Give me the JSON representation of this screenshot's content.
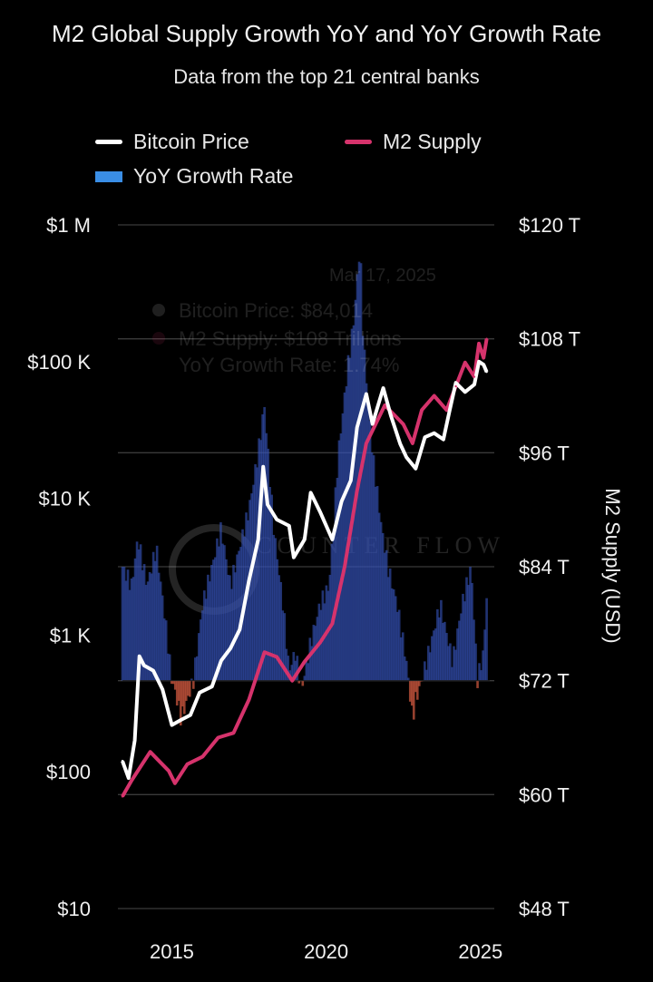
{
  "chart_data": {
    "type": "line",
    "title": "M2 Global Supply Growth YoY and YoY Growth Rate",
    "subtitle": "Data from the top 21 central banks",
    "legend": [
      {
        "name": "Bitcoin Price",
        "color": "#ffffff",
        "kind": "line"
      },
      {
        "name": "M2 Supply",
        "color": "#d6336c",
        "kind": "line"
      },
      {
        "name": "YoY Growth Rate",
        "color": "#3a8ee6",
        "kind": "bar"
      }
    ],
    "x_ticks": [
      "2015",
      "2020",
      "2025"
    ],
    "x_range": [
      2013.4,
      2025.3
    ],
    "y_left": {
      "scale": "log",
      "range": [
        10,
        1000000
      ],
      "ticks": [
        "$1 M",
        "$100 K",
        "$10 K",
        "$1 K",
        "$100",
        "$10"
      ]
    },
    "y_right": {
      "label": "M2 Supply (USD)",
      "range": [
        48,
        120
      ],
      "unit": "T",
      "ticks": [
        "$120 T",
        "$108 T",
        "$96 T",
        "$84 T",
        "$72 T",
        "$60 T",
        "$48 T"
      ]
    },
    "tooltip": {
      "date": "Mar 17, 2025",
      "lines": [
        "Bitcoin Price: $84,014",
        "M2 Supply: $108 Trillions",
        "YoY Growth Rate: 1.74%"
      ]
    },
    "watermark": "COUNTER FLOW",
    "series": [
      {
        "name": "Bitcoin Price",
        "axis": "left",
        "points": [
          [
            2013.4,
            120
          ],
          [
            2013.6,
            90
          ],
          [
            2013.8,
            170
          ],
          [
            2013.95,
            700
          ],
          [
            2014.1,
            600
          ],
          [
            2014.4,
            550
          ],
          [
            2014.7,
            400
          ],
          [
            2015.0,
            220
          ],
          [
            2015.3,
            240
          ],
          [
            2015.6,
            260
          ],
          [
            2015.9,
            380
          ],
          [
            2016.3,
            420
          ],
          [
            2016.6,
            650
          ],
          [
            2016.9,
            800
          ],
          [
            2017.2,
            1100
          ],
          [
            2017.5,
            2500
          ],
          [
            2017.8,
            5000
          ],
          [
            2017.96,
            17000
          ],
          [
            2018.1,
            9000
          ],
          [
            2018.4,
            7000
          ],
          [
            2018.8,
            6300
          ],
          [
            2018.95,
            3700
          ],
          [
            2019.3,
            5000
          ],
          [
            2019.5,
            11000
          ],
          [
            2019.8,
            8000
          ],
          [
            2020.2,
            5000
          ],
          [
            2020.5,
            9500
          ],
          [
            2020.8,
            13500
          ],
          [
            2021.0,
            33000
          ],
          [
            2021.3,
            58000
          ],
          [
            2021.5,
            35000
          ],
          [
            2021.85,
            64000
          ],
          [
            2022.1,
            40000
          ],
          [
            2022.4,
            25000
          ],
          [
            2022.6,
            20000
          ],
          [
            2022.9,
            16500
          ],
          [
            2023.2,
            28000
          ],
          [
            2023.5,
            30000
          ],
          [
            2023.8,
            27000
          ],
          [
            2024.0,
            44000
          ],
          [
            2024.2,
            70000
          ],
          [
            2024.5,
            60000
          ],
          [
            2024.8,
            68000
          ],
          [
            2024.95,
            100000
          ],
          [
            2025.1,
            95000
          ],
          [
            2025.2,
            84014
          ]
        ]
      },
      {
        "name": "M2 Supply",
        "axis": "right",
        "points": [
          [
            2013.4,
            59.8
          ],
          [
            2013.7,
            61.5
          ],
          [
            2014.0,
            63.0
          ],
          [
            2014.3,
            64.5
          ],
          [
            2014.6,
            63.5
          ],
          [
            2014.9,
            62.5
          ],
          [
            2015.1,
            61.2
          ],
          [
            2015.5,
            63.2
          ],
          [
            2016.0,
            64.0
          ],
          [
            2016.5,
            66.0
          ],
          [
            2017.0,
            66.5
          ],
          [
            2017.5,
            70.0
          ],
          [
            2018.0,
            75.0
          ],
          [
            2018.4,
            74.5
          ],
          [
            2018.9,
            72.0
          ],
          [
            2019.3,
            74.0
          ],
          [
            2019.8,
            76.0
          ],
          [
            2020.2,
            78.0
          ],
          [
            2020.6,
            84.0
          ],
          [
            2021.0,
            92.0
          ],
          [
            2021.3,
            97.0
          ],
          [
            2021.6,
            99.0
          ],
          [
            2021.9,
            101.0
          ],
          [
            2022.2,
            100.0
          ],
          [
            2022.5,
            99.0
          ],
          [
            2022.8,
            97.0
          ],
          [
            2023.1,
            100.5
          ],
          [
            2023.5,
            102.0
          ],
          [
            2023.9,
            100.5
          ],
          [
            2024.2,
            103.0
          ],
          [
            2024.5,
            105.5
          ],
          [
            2024.8,
            104.0
          ],
          [
            2024.95,
            107.5
          ],
          [
            2025.1,
            106.0
          ],
          [
            2025.2,
            108.0
          ]
        ]
      },
      {
        "name": "YoY Growth Rate",
        "axis": "bar",
        "baseline_t": 72,
        "points": [
          [
            2013.4,
            84
          ],
          [
            2013.7,
            82
          ],
          [
            2013.9,
            87
          ],
          [
            2014.2,
            82
          ],
          [
            2014.5,
            86
          ],
          [
            2014.8,
            78
          ],
          [
            2015.0,
            72
          ],
          [
            2015.1,
            71
          ],
          [
            2015.3,
            68
          ],
          [
            2015.5,
            70
          ],
          [
            2015.7,
            72
          ],
          [
            2016.0,
            80
          ],
          [
            2016.3,
            84
          ],
          [
            2016.6,
            88
          ],
          [
            2016.9,
            82
          ],
          [
            2017.2,
            86
          ],
          [
            2017.5,
            90
          ],
          [
            2017.8,
            96
          ],
          [
            2018.0,
            101
          ],
          [
            2018.3,
            88
          ],
          [
            2018.6,
            80
          ],
          [
            2018.8,
            73
          ],
          [
            2019.0,
            75
          ],
          [
            2019.2,
            71
          ],
          [
            2019.5,
            76
          ],
          [
            2019.8,
            80
          ],
          [
            2020.1,
            82
          ],
          [
            2020.4,
            96
          ],
          [
            2020.7,
            105
          ],
          [
            2020.9,
            110
          ],
          [
            2021.1,
            118
          ],
          [
            2021.2,
            108
          ],
          [
            2021.5,
            96
          ],
          [
            2021.8,
            88
          ],
          [
            2022.0,
            84
          ],
          [
            2022.3,
            80
          ],
          [
            2022.6,
            74
          ],
          [
            2022.8,
            68
          ],
          [
            2022.9,
            70
          ],
          [
            2023.1,
            72
          ],
          [
            2023.4,
            76
          ],
          [
            2023.7,
            80
          ],
          [
            2023.9,
            77
          ],
          [
            2024.1,
            74
          ],
          [
            2024.4,
            80
          ],
          [
            2024.7,
            84
          ],
          [
            2024.9,
            72
          ],
          [
            2025.1,
            75
          ],
          [
            2025.2,
            81
          ]
        ]
      }
    ]
  }
}
